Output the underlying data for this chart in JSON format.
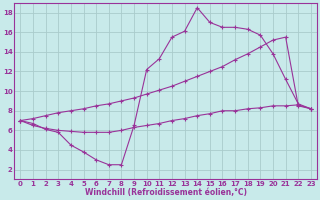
{
  "xlabel": "Windchill (Refroidissement éolien,°C)",
  "bg_color": "#c8eaea",
  "line_color": "#993399",
  "grid_color": "#aacccc",
  "xlim_min": -0.5,
  "xlim_max": 23.5,
  "ylim_min": 1,
  "ylim_max": 19,
  "yticks": [
    2,
    4,
    6,
    8,
    10,
    12,
    14,
    16,
    18
  ],
  "xticks": [
    0,
    1,
    2,
    3,
    4,
    5,
    6,
    7,
    8,
    9,
    10,
    11,
    12,
    13,
    14,
    15,
    16,
    17,
    18,
    19,
    20,
    21,
    22,
    23
  ],
  "series1_x": [
    0,
    1,
    2,
    3,
    4,
    5,
    6,
    7,
    8,
    9,
    10,
    11,
    12,
    13,
    14,
    15,
    16,
    17,
    18,
    19,
    20,
    21,
    22,
    23
  ],
  "series1_y": [
    7.0,
    6.7,
    6.1,
    5.8,
    4.5,
    3.8,
    3.0,
    2.5,
    2.5,
    6.5,
    12.2,
    13.3,
    15.5,
    16.1,
    18.5,
    17.0,
    16.5,
    16.5,
    16.3,
    15.7,
    13.8,
    11.2,
    8.7,
    8.2
  ],
  "series2_x": [
    0,
    1,
    2,
    3,
    4,
    5,
    6,
    7,
    8,
    9,
    10,
    11,
    12,
    13,
    14,
    15,
    16,
    17,
    18,
    19,
    20,
    21,
    22,
    23
  ],
  "series2_y": [
    7.0,
    7.2,
    7.5,
    7.8,
    8.0,
    8.2,
    8.5,
    8.7,
    9.0,
    9.3,
    9.7,
    10.1,
    10.5,
    11.0,
    11.5,
    12.0,
    12.5,
    13.2,
    13.8,
    14.5,
    15.2,
    15.5,
    8.5,
    8.2
  ],
  "series3_x": [
    0,
    1,
    2,
    3,
    4,
    5,
    6,
    7,
    8,
    9,
    10,
    11,
    12,
    13,
    14,
    15,
    16,
    17,
    18,
    19,
    20,
    21,
    22,
    23
  ],
  "series3_y": [
    7.0,
    6.5,
    6.2,
    6.0,
    5.9,
    5.8,
    5.8,
    5.8,
    6.0,
    6.3,
    6.5,
    6.7,
    7.0,
    7.2,
    7.5,
    7.7,
    8.0,
    8.0,
    8.2,
    8.3,
    8.5,
    8.5,
    8.6,
    8.2
  ]
}
